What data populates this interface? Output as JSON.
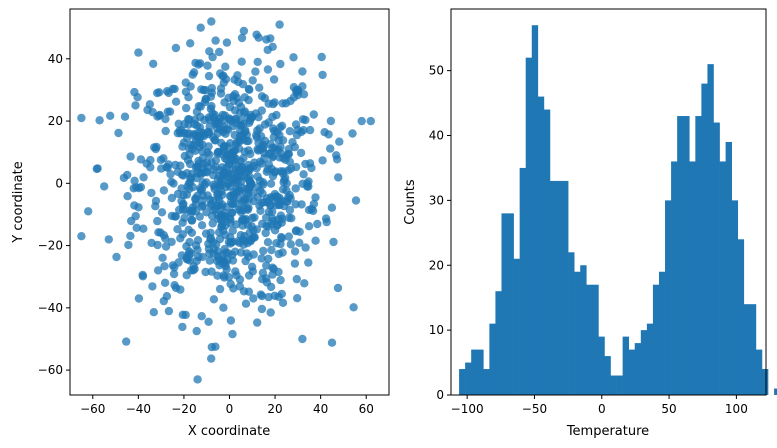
{
  "chart_data": [
    {
      "type": "scatter",
      "xlabel": "X coordinate",
      "ylabel": "Y coordinate",
      "xlim": [
        -70,
        70
      ],
      "ylim": [
        -68,
        56
      ],
      "xticks": [
        -60,
        -40,
        -20,
        0,
        20,
        40,
        60
      ],
      "yticks": [
        -60,
        -40,
        -20,
        0,
        20,
        40
      ],
      "xtick_labels": [
        "−60",
        "−40",
        "−20",
        "0",
        "20",
        "40",
        "60"
      ],
      "ytick_labels": [
        "−60",
        "−40",
        "−20",
        "0",
        "20",
        "40"
      ],
      "grid": false,
      "color": "#1f77b4",
      "point_count": 900,
      "distribution": "approximately 2D normal centred near (0, 0), std ~20 in each axis",
      "notable_points": [
        {
          "x": -65,
          "y": 21
        },
        {
          "x": -65,
          "y": -17
        },
        {
          "x": -62,
          "y": -9
        },
        {
          "x": -55,
          "y": -1
        },
        {
          "x": 62,
          "y": 20
        },
        {
          "x": 58,
          "y": 20
        },
        {
          "x": -14,
          "y": -63
        },
        {
          "x": 32,
          "y": -50
        },
        {
          "x": -8,
          "y": 52
        },
        {
          "x": 22,
          "y": 51
        },
        {
          "x": -40,
          "y": 42
        },
        {
          "x": 54,
          "y": 16
        }
      ]
    },
    {
      "type": "bar",
      "subtype": "histogram",
      "xlabel": "Temperature",
      "ylabel": "Counts",
      "xlim": [
        -112,
        122
      ],
      "ylim": [
        0,
        59.5
      ],
      "xticks": [
        -100,
        -50,
        0,
        50,
        100
      ],
      "yticks": [
        0,
        10,
        20,
        30,
        40,
        50
      ],
      "xtick_labels": [
        "−100",
        "−50",
        "0",
        "50",
        "100"
      ],
      "ytick_labels": [
        "0",
        "10",
        "20",
        "30",
        "40",
        "50"
      ],
      "grid": false,
      "color": "#1f77b4",
      "bin_start": -106,
      "bin_width": 4.5,
      "counts": [
        4,
        5,
        7,
        7,
        4,
        11,
        16,
        28,
        28,
        21,
        35,
        52,
        57,
        46,
        44,
        33,
        33,
        33,
        22,
        19,
        20,
        17,
        17,
        9,
        6,
        3,
        3,
        9,
        7,
        8,
        10,
        11,
        17,
        19,
        30,
        36,
        43,
        43,
        36,
        43,
        48,
        51,
        42,
        36,
        39,
        30,
        24,
        14,
        14,
        7,
        4,
        0,
        1,
        0,
        1
      ]
    }
  ]
}
